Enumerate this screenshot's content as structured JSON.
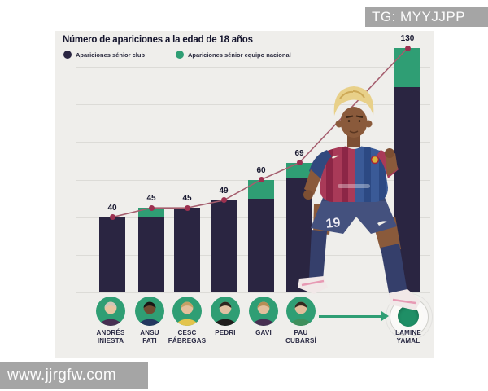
{
  "watermarks": {
    "top_right": "TG: MYYJJPP",
    "bottom_left": "www.jjrgfw.com"
  },
  "chart": {
    "title": "Número de apariciones a la edad de 18 años",
    "legend": [
      {
        "label": "Apariciones sénior club",
        "color": "#2a2541"
      },
      {
        "label": "Apariciones sénior equipo nacional",
        "color": "#2f9e74"
      }
    ]
  },
  "chart_data": {
    "type": "bar",
    "stacked": true,
    "title": "Número de apariciones a la edad de 18 años",
    "categories": [
      "Andrés Iniesta",
      "Ansu Fati",
      "Cesc Fábregas",
      "Pedri",
      "Gavi",
      "Pau Cubarsí",
      "Lamine Yamal"
    ],
    "series": [
      {
        "name": "Apariciones sénior club",
        "color": "#2a2541",
        "values": [
          40,
          40,
          45,
          49,
          50,
          61,
          109
        ]
      },
      {
        "name": "Apariciones sénior equipo nacional",
        "color": "#2f9e74",
        "values": [
          0,
          5,
          0,
          0,
          10,
          8,
          21
        ]
      }
    ],
    "totals": [
      40,
      45,
      45,
      49,
      60,
      69,
      130
    ],
    "line_overlay": {
      "type": "line",
      "values": [
        40,
        45,
        45,
        49,
        60,
        69,
        130
      ],
      "color": "#a55e6e",
      "marker_color": "#9c3150"
    },
    "ylim": [
      0,
      140
    ],
    "gridline_values": [
      0,
      20,
      40,
      60,
      80,
      100,
      120
    ],
    "grid": true,
    "legend_position": "top-left"
  },
  "players": [
    {
      "id": "andres-iniesta",
      "line1": "ANDRÉS",
      "line2": "INIESTA",
      "avatar": {
        "skin": "#e7c5a2",
        "hair": "#cfc6b8",
        "shirt": "#472f52"
      }
    },
    {
      "id": "ansu-fati",
      "line1": "ANSU",
      "line2": "FATI",
      "avatar": {
        "skin": "#6f4b31",
        "hair": "#181614",
        "shirt": "#24375f"
      }
    },
    {
      "id": "cesc-fabregas",
      "line1": "CESC",
      "line2": "FÁBREGAS",
      "avatar": {
        "skin": "#e4bf9b",
        "hair": "#c4a065",
        "shirt": "#e3c44c"
      }
    },
    {
      "id": "pedri",
      "line1": "PEDRI",
      "line2": "",
      "avatar": {
        "skin": "#e0c0a2",
        "hair": "#2b241e",
        "shirt": "#201e1d"
      }
    },
    {
      "id": "gavi",
      "line1": "GAVI",
      "line2": "",
      "avatar": {
        "skin": "#e3bf9c",
        "hair": "#b68e55",
        "shirt": "#472f52"
      }
    },
    {
      "id": "pau-cubarsi",
      "line1": "PAU",
      "line2": "CUBARSÍ",
      "avatar": {
        "skin": "#e1bd9b",
        "hair": "#33291f",
        "shirt": "#3f8f5c"
      }
    },
    {
      "id": "lamine-yamal",
      "line1": "LAMINE",
      "line2": "YAMAL",
      "avatar": null
    }
  ],
  "player_figure": {
    "shirt_number": "19"
  },
  "colors": {
    "page_bg": "#ffffff",
    "card_bg": "#efeeeb",
    "grid": "#dcdbd7",
    "text_dark": "#15152d",
    "club": "#2a2541",
    "national": "#2f9e74",
    "line": "#a55e6e",
    "marker": "#9c3150",
    "arrow": "#2f9e74",
    "target_inner": "#1f8f66",
    "watermark_bg": "#a5a5a5",
    "watermark_text": "#fcfcfc"
  }
}
